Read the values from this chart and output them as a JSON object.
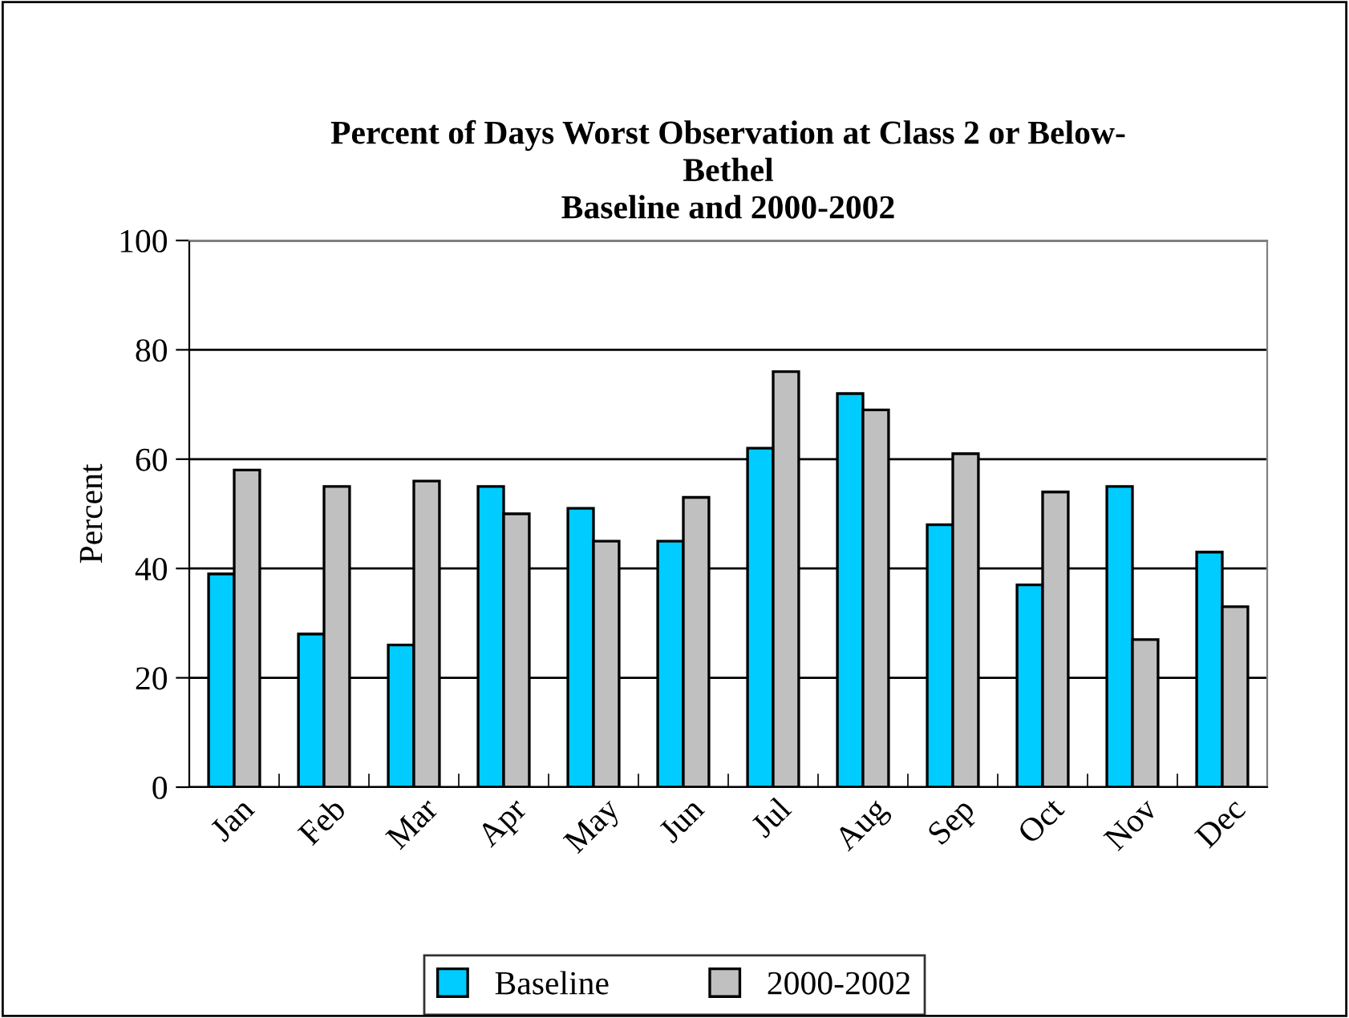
{
  "chart_data": {
    "type": "bar",
    "title": "Percent of Days Worst Observation at Class 2 or Below-\nBethel\nBaseline and 2000-2002",
    "ylabel": "Percent",
    "categories": [
      "Jan",
      "Feb",
      "Mar",
      "Apr",
      "May",
      "Jun",
      "Jul",
      "Aug",
      "Sep",
      "Oct",
      "Nov",
      "Dec"
    ],
    "series": [
      {
        "name": "Baseline",
        "color": "#00ccff",
        "values": [
          39,
          28,
          26,
          55,
          51,
          45,
          62,
          72,
          48,
          37,
          55,
          43
        ]
      },
      {
        "name": "2000-2002",
        "color": "#c0c0c0",
        "values": [
          58,
          55,
          56,
          50,
          45,
          53,
          76,
          69,
          61,
          54,
          27,
          33
        ]
      }
    ],
    "ylim": [
      0,
      100
    ],
    "yticks": [
      0,
      20,
      40,
      60,
      80,
      100
    ],
    "grid": "y",
    "legend": "bottom"
  }
}
